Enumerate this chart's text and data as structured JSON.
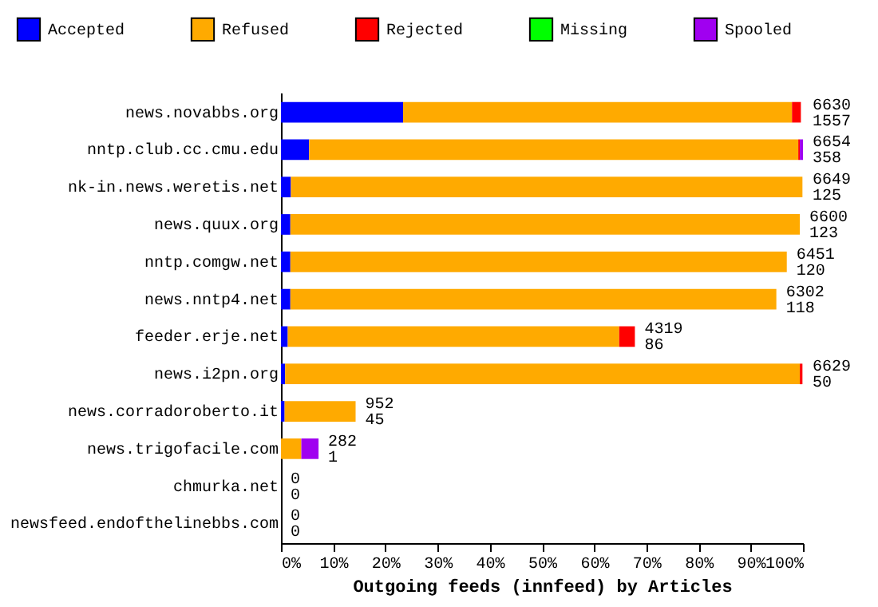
{
  "chart_data": {
    "type": "bar",
    "orientation": "horizontal",
    "stacked": true,
    "xlabel": "Outgoing feeds (innfeed) by Articles",
    "categories": [
      "news.novabbs.org",
      "nntp.club.cc.cmu.edu",
      "nk-in.news.weretis.net",
      "news.quux.org",
      "nntp.comgw.net",
      "news.nntp4.net",
      "feeder.erje.net",
      "news.i2pn.org",
      "news.corradoroberto.it",
      "news.trigofacile.com",
      "chmurka.net",
      "newsfeed.endofthelinebbs.com"
    ],
    "series": [
      {
        "name": "Accepted",
        "color": "#0000ff",
        "values": [
          23.4,
          5.4,
          1.9,
          1.8,
          1.8,
          1.8,
          1.3,
          0.8,
          0.7,
          0,
          0,
          0
        ]
      },
      {
        "name": "Refused",
        "color": "#ffaa00",
        "values": [
          74.5,
          93.7,
          98.0,
          97.6,
          95.1,
          93.1,
          63.5,
          98.6,
          13.6,
          3.9,
          0,
          0
        ]
      },
      {
        "name": "Rejected",
        "color": "#ff0000",
        "values": [
          1.7,
          0.3,
          0,
          0,
          0,
          0,
          3.0,
          0.5,
          0,
          0,
          0,
          0
        ]
      },
      {
        "name": "Missing",
        "color": "#00ff00",
        "values": [
          0,
          0,
          0,
          0,
          0,
          0,
          0,
          0,
          0,
          0,
          0,
          0
        ]
      },
      {
        "name": "Spooled",
        "color": "#a000f0",
        "values": [
          0,
          0.6,
          0,
          0,
          0,
          0,
          0,
          0,
          0,
          3.3,
          0,
          0
        ]
      }
    ],
    "xlim": [
      0,
      100
    ],
    "xticks": [
      {
        "value": 0,
        "label": "0%"
      },
      {
        "value": 10,
        "label": "10%"
      },
      {
        "value": 20,
        "label": "20%"
      },
      {
        "value": 30,
        "label": "30%"
      },
      {
        "value": 40,
        "label": "40%"
      },
      {
        "value": 50,
        "label": "50%"
      },
      {
        "value": 60,
        "label": "60%"
      },
      {
        "value": 70,
        "label": "70%"
      },
      {
        "value": 80,
        "label": "80%"
      },
      {
        "value": 90,
        "label": "90%"
      },
      {
        "value": 100,
        "label": "100%"
      }
    ],
    "legend": "top",
    "annotations": [
      {
        "text": "6630\n1557",
        "x": 100,
        "y": "news.novabbs.org"
      },
      {
        "text": "6654\n358",
        "x": 100,
        "y": "nntp.club.cc.cmu.edu"
      },
      {
        "text": "6649\n125",
        "x": 100,
        "y": "nk-in.news.weretis.net"
      },
      {
        "text": "6600\n123",
        "x": 99.4,
        "y": "news.quux.org"
      },
      {
        "text": "6451\n120",
        "x": 96.9,
        "y": "nntp.comgw.net"
      },
      {
        "text": "6302\n118",
        "x": 94.9,
        "y": "news.nntp4.net"
      },
      {
        "text": "4319\n86",
        "x": 67.8,
        "y": "feeder.erje.net"
      },
      {
        "text": "6629\n50",
        "x": 100,
        "y": "news.i2pn.org"
      },
      {
        "text": "952\n45",
        "x": 14.3,
        "y": "news.corradoroberto.it"
      },
      {
        "text": "282\n1",
        "x": 7.2,
        "y": "news.trigofacile.com"
      },
      {
        "text": "0\n0",
        "x": 0,
        "y": "chmurka.net"
      },
      {
        "text": "0\n0",
        "x": 0,
        "y": "newsfeed.endofthelinebbs.com"
      }
    ]
  }
}
